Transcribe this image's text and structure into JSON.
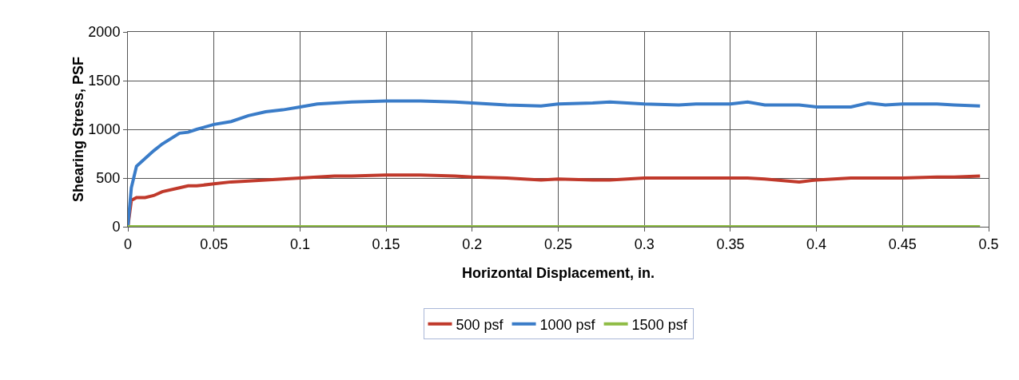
{
  "chart_data": {
    "type": "line",
    "xlabel": "Horizontal Displacement, in.",
    "ylabel": "Shearing Stress, PSF",
    "x": [
      0,
      0.002,
      0.005,
      0.01,
      0.015,
      0.02,
      0.03,
      0.035,
      0.04,
      0.05,
      0.06,
      0.07,
      0.08,
      0.09,
      0.1,
      0.11,
      0.12,
      0.13,
      0.15,
      0.17,
      0.19,
      0.2,
      0.22,
      0.24,
      0.25,
      0.27,
      0.28,
      0.3,
      0.32,
      0.33,
      0.35,
      0.36,
      0.37,
      0.39,
      0.4,
      0.42,
      0.43,
      0.44,
      0.45,
      0.47,
      0.48,
      0.495
    ],
    "series": [
      {
        "name": "500 psf",
        "color": "#c0392b",
        "values": [
          0,
          270,
          300,
          300,
          320,
          360,
          400,
          420,
          420,
          440,
          460,
          470,
          480,
          490,
          500,
          510,
          520,
          520,
          530,
          530,
          520,
          510,
          500,
          480,
          490,
          480,
          480,
          500,
          500,
          500,
          500,
          500,
          490,
          460,
          480,
          500,
          500,
          500,
          500,
          510,
          510,
          520
        ]
      },
      {
        "name": "1000 psf",
        "color": "#3a7cc8",
        "values": [
          0,
          400,
          620,
          700,
          780,
          850,
          960,
          970,
          1000,
          1050,
          1080,
          1140,
          1180,
          1200,
          1230,
          1260,
          1270,
          1280,
          1290,
          1290,
          1280,
          1270,
          1250,
          1240,
          1260,
          1270,
          1280,
          1260,
          1250,
          1260,
          1260,
          1280,
          1250,
          1250,
          1230,
          1230,
          1270,
          1250,
          1260,
          1260,
          1250,
          1240
        ]
      },
      {
        "name": "1500 psf",
        "color": "#8fbc45",
        "values": [
          0,
          0,
          0,
          0,
          0,
          0,
          0,
          0,
          0,
          0,
          0,
          0,
          0,
          0,
          0,
          0,
          0,
          0,
          0,
          0,
          0,
          0,
          0,
          0,
          0,
          0,
          0,
          0,
          0,
          0,
          0,
          0,
          0,
          0,
          0,
          0,
          0,
          0,
          0,
          0,
          0,
          0
        ]
      }
    ],
    "xlim": [
      0,
      0.5
    ],
    "xticks": [
      0,
      0.05,
      0.1,
      0.15,
      0.2,
      0.25,
      0.3,
      0.35,
      0.4,
      0.45,
      0.5
    ],
    "ylim": [
      0,
      2000
    ],
    "yticks": [
      0,
      500,
      1000,
      1500,
      2000
    ],
    "grid": true,
    "legend": "bottom",
    "marker": "none",
    "line_style": "solid"
  }
}
